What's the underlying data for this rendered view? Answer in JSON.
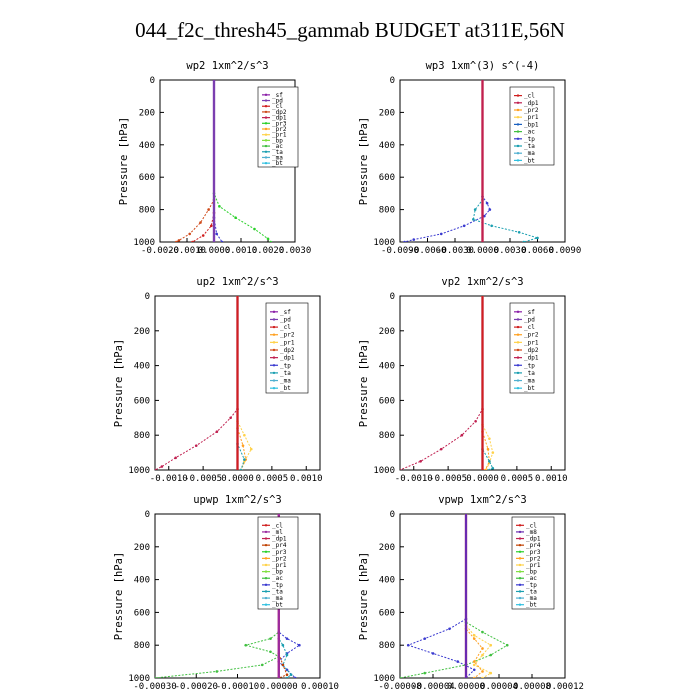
{
  "title": "044_f2c_thresh45_gammab  BUDGET at311E,56N",
  "colors": {
    "_sf": "#8b1fa8",
    "_pd": "#7b3fb0",
    "_cl": "#d01f1f",
    "_dp1": "#c02050",
    "_dp2": "#d04a1a",
    "_pr1": "#ffd24a",
    "_pr2": "#ffa020",
    "_pr3": "#2ad02a",
    "_bp": "#80e040",
    "_bp1": "#1a60c0",
    "_ac": "#40c040",
    "_tp": "#3a3ad0",
    "_ta": "#1a9fb0",
    "_ma": "#50b0d0",
    "_bt": "#30c0e0",
    "_ml": "#9a2aa0",
    "_pr4": "#c04000",
    "_m8": "#6a2ab0"
  },
  "chart_data": [
    {
      "type": "line",
      "title": "wp2   1xm^2/s^3",
      "ylabel": "Pressure  [hPa]",
      "ylim": [
        1000,
        0
      ],
      "xlim": [
        -0.002,
        0.003
      ],
      "xticks": [
        "-0.0020",
        "-0.0010",
        "0.0000",
        "0.0010",
        "0.0020",
        "0.0030"
      ],
      "xtick_values": [
        -0.002,
        -0.001,
        0.0,
        0.001,
        0.002,
        0.003
      ],
      "yticks": [
        "0",
        "200",
        "400",
        "600",
        "800",
        "1000"
      ],
      "legend": [
        "_sf",
        "_pd",
        "_cl",
        "_dp2",
        "_dp1",
        "_pr3",
        "_pr2",
        "_pr1",
        "_bp",
        "_ac",
        "_ta",
        "_ma",
        "_bt"
      ],
      "series": [
        {
          "name": "_pr3",
          "points": [
            [
              0.0,
              0
            ],
            [
              0.0,
              700
            ],
            [
              0.0002,
              780
            ],
            [
              0.0008,
              850
            ],
            [
              0.0015,
              920
            ],
            [
              0.002,
              980
            ],
            [
              0.0021,
              1000
            ]
          ]
        },
        {
          "name": "_dp2",
          "points": [
            [
              0.0,
              0
            ],
            [
              0.0,
              740
            ],
            [
              -0.0002,
              800
            ],
            [
              -0.0005,
              880
            ],
            [
              -0.0009,
              950
            ],
            [
              -0.0013,
              990
            ],
            [
              -0.0014,
              1000
            ]
          ]
        },
        {
          "name": "_cl",
          "points": [
            [
              0.0,
              0
            ],
            [
              0.0,
              820
            ],
            [
              -0.0001,
              900
            ],
            [
              -0.0004,
              960
            ],
            [
              -0.0008,
              1000
            ]
          ]
        },
        {
          "name": "_tp",
          "points": [
            [
              0.0,
              0
            ],
            [
              0.0,
              850
            ],
            [
              0.0001,
              950
            ],
            [
              0.0003,
              1000
            ]
          ]
        },
        {
          "name": "_sf",
          "points": [
            [
              0.0,
              0
            ],
            [
              0.0,
              1000
            ]
          ]
        },
        {
          "name": "_pd",
          "points": [
            [
              0.0,
              0
            ],
            [
              0.0,
              1000
            ]
          ]
        }
      ]
    },
    {
      "type": "line",
      "title": "wp3   1xm^(3) s^(-4)",
      "ylabel": "Pressure  [hPa]",
      "ylim": [
        1000,
        0
      ],
      "xlim": [
        -0.009,
        0.009
      ],
      "xticks": [
        "-0.0090",
        "-0.0060",
        "-0.0030",
        "0.0000",
        "0.0030",
        "0.0060",
        "0.0090"
      ],
      "xtick_values": [
        -0.009,
        -0.006,
        -0.003,
        0.0,
        0.003,
        0.006,
        0.009
      ],
      "yticks": [
        "0",
        "200",
        "400",
        "600",
        "800",
        "1000"
      ],
      "legend": [
        "_cl",
        "_dp1",
        "_pr2",
        "_pr1",
        "_bp1",
        "_ac",
        "_tp",
        "_ta",
        "_ma",
        "_bt"
      ],
      "series": [
        {
          "name": "_tp",
          "points": [
            [
              0.0,
              0
            ],
            [
              0.0,
              720
            ],
            [
              0.0005,
              760
            ],
            [
              0.0008,
              800
            ],
            [
              0.0002,
              840
            ],
            [
              -0.002,
              900
            ],
            [
              -0.0045,
              950
            ],
            [
              -0.0075,
              985
            ],
            [
              -0.0085,
              1000
            ]
          ]
        },
        {
          "name": "_ta",
          "points": [
            [
              0.0,
              0
            ],
            [
              0.0,
              740
            ],
            [
              -0.0008,
              800
            ],
            [
              -0.001,
              860
            ],
            [
              0.001,
              900
            ],
            [
              0.004,
              940
            ],
            [
              0.006,
              975
            ],
            [
              0.0045,
              1000
            ]
          ]
        },
        {
          "name": "_cl",
          "points": [
            [
              0.0,
              0
            ],
            [
              0.0,
              1000
            ]
          ]
        },
        {
          "name": "_dp1",
          "points": [
            [
              0.0,
              0
            ],
            [
              0.0,
              1000
            ]
          ]
        }
      ]
    },
    {
      "type": "line",
      "title": "up2   1xm^2/s^3",
      "ylabel": "Pressure  [hPa]",
      "ylim": [
        1000,
        0
      ],
      "xlim": [
        -0.0012,
        0.0012
      ],
      "xticks": [
        "-0.0010",
        "-0.0005",
        "0.0000",
        "0.0005",
        "0.0010"
      ],
      "xtick_values": [
        -0.001,
        -0.0005,
        0.0,
        0.0005,
        0.001
      ],
      "yticks": [
        "0",
        "200",
        "400",
        "600",
        "800",
        "1000"
      ],
      "legend": [
        "_sf",
        "_pd",
        "_cl",
        "_pr2",
        "_pr1",
        "_dp2",
        "_dp1",
        "_tp",
        "_ta",
        "_ma",
        "_bt"
      ],
      "series": [
        {
          "name": "_dp1",
          "points": [
            [
              0.0,
              0
            ],
            [
              0.0,
              650
            ],
            [
              -0.0001,
              700
            ],
            [
              -0.0003,
              780
            ],
            [
              -0.0006,
              860
            ],
            [
              -0.0009,
              930
            ],
            [
              -0.0011,
              980
            ],
            [
              -0.0012,
              1000
            ]
          ]
        },
        {
          "name": "_pr1",
          "points": [
            [
              0.0,
              0
            ],
            [
              0.0,
              720
            ],
            [
              0.0001,
              800
            ],
            [
              0.0002,
              880
            ],
            [
              0.0001,
              950
            ],
            [
              5e-05,
              1000
            ]
          ]
        },
        {
          "name": "_pr2",
          "points": [
            [
              0.0,
              0
            ],
            [
              0.0,
              760
            ],
            [
              8e-05,
              860
            ],
            [
              0.00012,
              940
            ],
            [
              5e-05,
              1000
            ]
          ]
        },
        {
          "name": "_ta",
          "points": [
            [
              0.0,
              0
            ],
            [
              0.0,
              850
            ],
            [
              0.0001,
              940
            ],
            [
              5e-05,
              1000
            ]
          ]
        },
        {
          "name": "_sf",
          "points": [
            [
              0.0,
              0
            ],
            [
              0.0,
              1000
            ]
          ]
        },
        {
          "name": "_cl",
          "points": [
            [
              0.0,
              0
            ],
            [
              0.0,
              1000
            ]
          ]
        }
      ]
    },
    {
      "type": "line",
      "title": "vp2   1xm^2/s^3",
      "ylabel": "Pressure  [hPa]",
      "ylim": [
        1000,
        0
      ],
      "xlim": [
        -0.0012,
        0.0012
      ],
      "xticks": [
        "-0.0010",
        "-0.0005",
        "0.0000",
        "0.0005",
        "0.0010"
      ],
      "xtick_values": [
        -0.001,
        -0.0005,
        0.0,
        0.0005,
        0.001
      ],
      "yticks": [
        "0",
        "200",
        "400",
        "600",
        "800",
        "1000"
      ],
      "legend": [
        "_sf",
        "_pd",
        "_cl",
        "_pr2",
        "_pr1",
        "_dp2",
        "_dp1",
        "_tp",
        "_ta",
        "_ma",
        "_bt"
      ],
      "series": [
        {
          "name": "_dp1",
          "points": [
            [
              0.0,
              0
            ],
            [
              0.0,
              650
            ],
            [
              -0.0001,
              720
            ],
            [
              -0.0003,
              800
            ],
            [
              -0.0006,
              880
            ],
            [
              -0.0009,
              950
            ],
            [
              -0.0012,
              1000
            ]
          ]
        },
        {
          "name": "_pr1",
          "points": [
            [
              0.0,
              0
            ],
            [
              0.0,
              740
            ],
            [
              0.0001,
              820
            ],
            [
              0.00015,
              900
            ],
            [
              0.0001,
              960
            ],
            [
              5e-05,
              1000
            ]
          ]
        },
        {
          "name": "_pr2",
          "points": [
            [
              0.0,
              0
            ],
            [
              0.0,
              780
            ],
            [
              8e-05,
              880
            ],
            [
              0.0001,
              950
            ],
            [
              4e-05,
              1000
            ]
          ]
        },
        {
          "name": "_ta",
          "points": [
            [
              0.0,
              0
            ],
            [
              0.0,
              880
            ],
            [
              0.0001,
              950
            ],
            [
              0.00015,
              990
            ],
            [
              0.0001,
              1000
            ]
          ]
        },
        {
          "name": "_sf",
          "points": [
            [
              0.0,
              0
            ],
            [
              0.0,
              1000
            ]
          ]
        },
        {
          "name": "_cl",
          "points": [
            [
              0.0,
              0
            ],
            [
              0.0,
              1000
            ]
          ]
        }
      ]
    },
    {
      "type": "line",
      "title": "upwp   1xm^2/s^3",
      "ylabel": "Pressure  [hPa]",
      "ylim": [
        1000,
        0
      ],
      "xlim": [
        -0.0003,
        0.0001
      ],
      "xticks": [
        "-0.00030",
        "-0.00020",
        "-0.00010",
        "0.00000",
        "0.00010"
      ],
      "xtick_values": [
        -0.0003,
        -0.0002,
        -0.0001,
        0.0,
        0.0001
      ],
      "yticks": [
        "0",
        "200",
        "400",
        "600",
        "800",
        "1000"
      ],
      "legend": [
        "_cl",
        "_ml",
        "_dp1",
        "_pr4",
        "_pr3",
        "_pr2",
        "_pr1",
        "_bp",
        "_ac",
        "_tp",
        "_ta",
        "_ma",
        "_bt"
      ],
      "series": [
        {
          "name": "_ac",
          "points": [
            [
              0.0,
              0
            ],
            [
              0.0,
              720
            ],
            [
              -2e-05,
              760
            ],
            [
              -8e-05,
              800
            ],
            [
              -2e-05,
              840
            ],
            [
              0.0,
              870
            ],
            [
              -4e-05,
              920
            ],
            [
              -0.00015,
              960
            ],
            [
              -0.0003,
              1000
            ]
          ]
        },
        {
          "name": "_tp",
          "points": [
            [
              0.0,
              0
            ],
            [
              0.0,
              720
            ],
            [
              2e-05,
              760
            ],
            [
              5e-05,
              800
            ],
            [
              2e-05,
              850
            ],
            [
              0.0,
              900
            ],
            [
              2e-05,
              950
            ],
            [
              4e-05,
              1000
            ]
          ]
        },
        {
          "name": "_ta",
          "points": [
            [
              0.0,
              0
            ],
            [
              0.0,
              760
            ],
            [
              1e-05,
              800
            ],
            [
              2e-05,
              860
            ],
            [
              1e-05,
              920
            ],
            [
              3e-05,
              980
            ],
            [
              2e-05,
              1000
            ]
          ]
        },
        {
          "name": "_pr4",
          "points": [
            [
              0.0,
              0
            ],
            [
              0.0,
              850
            ],
            [
              1e-05,
              920
            ],
            [
              2e-05,
              980
            ],
            [
              0.0,
              1000
            ]
          ]
        },
        {
          "name": "_cl",
          "points": [
            [
              0.0,
              0
            ],
            [
              0.0,
              1000
            ]
          ]
        },
        {
          "name": "_ml",
          "points": [
            [
              0.0,
              0
            ],
            [
              0.0,
              1000
            ]
          ]
        }
      ]
    },
    {
      "type": "line",
      "title": "vpwp   1xm^2/s^3",
      "ylabel": "Pressure  [hPa]",
      "ylim": [
        1000,
        0
      ],
      "xlim": [
        -8e-05,
        0.00012
      ],
      "xticks": [
        "-0.00008",
        "-0.00004",
        "0.00000",
        "0.00004",
        "0.00008",
        "0.00012"
      ],
      "xtick_values": [
        -8e-05,
        -4e-05,
        0.0,
        4e-05,
        8e-05,
        0.00012
      ],
      "yticks": [
        "0",
        "200",
        "400",
        "600",
        "800",
        "1000"
      ],
      "legend": [
        "_cl",
        "_m8",
        "_dp1",
        "_pr4",
        "_pr3",
        "_pr2",
        "_pr1",
        "_bp",
        "_ac",
        "_tp",
        "_ta",
        "_ma",
        "_bt"
      ],
      "series": [
        {
          "name": "_tp",
          "points": [
            [
              0.0,
              0
            ],
            [
              0.0,
              640
            ],
            [
              -2e-05,
              700
            ],
            [
              -5e-05,
              760
            ],
            [
              -7e-05,
              800
            ],
            [
              -4e-05,
              850
            ],
            [
              -1e-05,
              900
            ],
            [
              1e-05,
              950
            ],
            [
              0.0,
              1000
            ]
          ]
        },
        {
          "name": "_ac",
          "points": [
            [
              0.0,
              0
            ],
            [
              0.0,
              660
            ],
            [
              2e-05,
              720
            ],
            [
              5e-05,
              800
            ],
            [
              3e-05,
              860
            ],
            [
              0.0,
              920
            ],
            [
              -5e-05,
              970
            ],
            [
              -8e-05,
              1000
            ]
          ]
        },
        {
          "name": "_pr1",
          "points": [
            [
              0.0,
              0
            ],
            [
              0.0,
              680
            ],
            [
              1e-05,
              740
            ],
            [
              3e-05,
              800
            ],
            [
              2e-05,
              860
            ],
            [
              1e-05,
              920
            ],
            [
              3e-05,
              970
            ],
            [
              2e-05,
              1000
            ]
          ]
        },
        {
          "name": "_pr2",
          "points": [
            [
              0.0,
              0
            ],
            [
              0.0,
              700
            ],
            [
              1e-05,
              760
            ],
            [
              2e-05,
              820
            ],
            [
              1e-05,
              900
            ],
            [
              2e-05,
              960
            ],
            [
              1e-05,
              1000
            ]
          ]
        },
        {
          "name": "_cl",
          "points": [
            [
              0.0,
              0
            ],
            [
              0.0,
              1000
            ]
          ]
        },
        {
          "name": "_m8",
          "points": [
            [
              0.0,
              0
            ],
            [
              0.0,
              1000
            ]
          ]
        }
      ]
    }
  ]
}
